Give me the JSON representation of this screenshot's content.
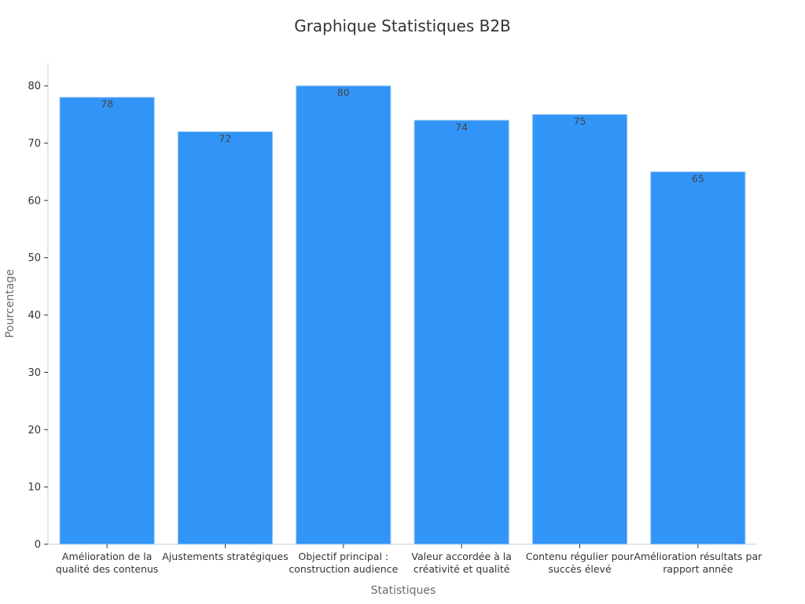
{
  "chart_data": {
    "type": "bar",
    "title": "Graphique Statistiques B2B",
    "xlabel": "Statistiques",
    "ylabel": "Pourcentage",
    "categories": [
      [
        "Amélioration de la",
        "qualité des contenus"
      ],
      [
        "Ajustements stratégiques"
      ],
      [
        "Objectif principal :",
        "construction audience"
      ],
      [
        "Valeur accordée à la",
        "créativité et qualité"
      ],
      [
        "Contenu régulier pour",
        "succès élevé"
      ],
      [
        "Amélioration résultats par",
        "rapport année"
      ]
    ],
    "values": [
      78,
      72,
      80,
      74,
      75,
      65
    ],
    "data_labels": [
      "78",
      "72",
      "80",
      "74",
      "75",
      "65"
    ],
    "yticks": [
      0,
      10,
      20,
      30,
      40,
      50,
      60,
      70,
      80
    ],
    "ylim": [
      0,
      84
    ],
    "grid": false,
    "bar_color": "#3194f7"
  }
}
